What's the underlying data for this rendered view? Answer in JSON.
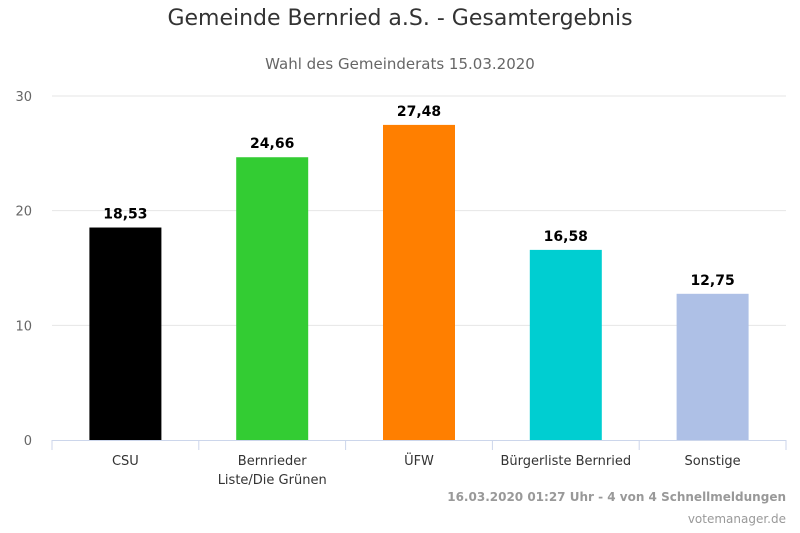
{
  "chart_data": {
    "type": "bar",
    "title": "Gemeinde Bernried a.S. - Gesamtergebnis",
    "subtitle": "Wahl des Gemeinderats 15.03.2020",
    "categories": [
      "CSU",
      "Bernrieder Liste/Die Grünen",
      "ÜFW",
      "Bürgerliste Bernried",
      "Sonstige"
    ],
    "category_lines": [
      [
        "CSU"
      ],
      [
        "Bernrieder",
        "Liste/Die Grünen"
      ],
      [
        "ÜFW"
      ],
      [
        "Bürgerliste Bernried"
      ],
      [
        "Sonstige"
      ]
    ],
    "values": [
      18.53,
      24.66,
      27.48,
      16.58,
      12.75
    ],
    "data_labels": [
      "18,53",
      "24,66",
      "27,48",
      "16,58",
      "12,75"
    ],
    "colors": [
      "#000000",
      "#33cc33",
      "#ff7f00",
      "#00ced1",
      "#aec0e6"
    ],
    "ylim": [
      0,
      30
    ],
    "yticks": [
      0,
      10,
      20,
      30
    ],
    "grid": true,
    "legend": "none"
  },
  "credits": {
    "line": "16.03.2020 01:27 Uhr - 4 von 4 Schnellmeldungen",
    "site": "votemanager.de"
  }
}
